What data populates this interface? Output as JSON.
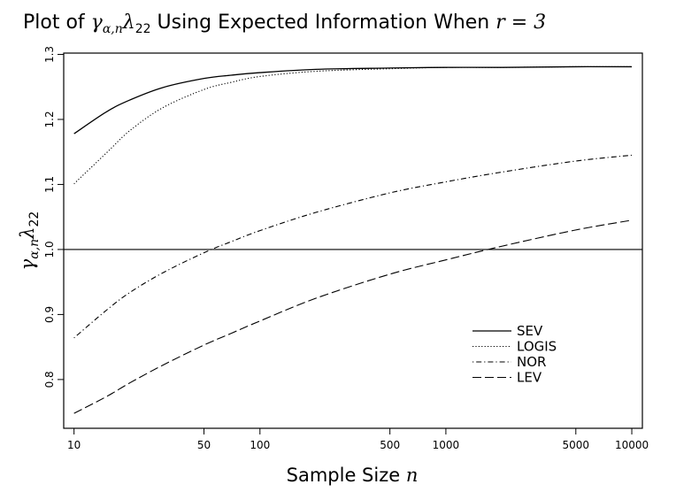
{
  "chart_data": {
    "type": "line",
    "title": {
      "prefix": "Plot of ",
      "math1_base": "γ",
      "math1_sub": "α,n",
      "math1_tail": "λ",
      "math1_tail_sub": "22",
      "middle": " Using Expected Information When ",
      "math2": "r = 3"
    },
    "xlabel": {
      "text": "Sample Size ",
      "var": "n"
    },
    "ylabel": {
      "base": "γ",
      "sub": "α,n",
      "tail": "λ",
      "tail_sub": "22"
    },
    "x_scale": "log",
    "xlim": [
      8.8,
      11400
    ],
    "ylim": [
      0.725,
      1.302
    ],
    "x_ticks": [
      {
        "value": 10,
        "label": "10"
      },
      {
        "value": 50,
        "label": "50"
      },
      {
        "value": 100,
        "label": "100"
      },
      {
        "value": 500,
        "label": "500"
      },
      {
        "value": 1000,
        "label": "1000"
      },
      {
        "value": 5000,
        "label": "5000"
      },
      {
        "value": 10000,
        "label": "10000"
      }
    ],
    "y_ticks": [
      {
        "value": 0.8,
        "label": "0.8"
      },
      {
        "value": 0.9,
        "label": "0.9"
      },
      {
        "value": 1.0,
        "label": "1.0"
      },
      {
        "value": 1.1,
        "label": "1.1"
      },
      {
        "value": 1.2,
        "label": "1.2"
      },
      {
        "value": 1.3,
        "label": "1.3"
      }
    ],
    "reference_line": 1.0,
    "legend_position": "bottom-right",
    "series": [
      {
        "name": "SEV",
        "dash": "solid",
        "x": [
          10,
          15,
          20,
          30,
          50,
          70,
          100,
          200,
          500,
          1000,
          2000,
          5000,
          10000
        ],
        "y": [
          1.178,
          1.212,
          1.23,
          1.249,
          1.263,
          1.268,
          1.272,
          1.277,
          1.279,
          1.28,
          1.28,
          1.281,
          1.281
        ]
      },
      {
        "name": "LOGIS",
        "dash": "dotted",
        "x": [
          10,
          15,
          20,
          30,
          50,
          70,
          100,
          200,
          500,
          1000,
          2000,
          5000,
          10000
        ],
        "y": [
          1.101,
          1.149,
          1.183,
          1.218,
          1.246,
          1.257,
          1.266,
          1.274,
          1.278,
          1.28,
          1.28,
          1.281,
          1.281
        ]
      },
      {
        "name": "NOR",
        "dash": "dotdash",
        "x": [
          10,
          15,
          20,
          30,
          50,
          70,
          100,
          200,
          500,
          1000,
          2000,
          5000,
          10000
        ],
        "y": [
          0.864,
          0.907,
          0.934,
          0.964,
          0.995,
          1.012,
          1.029,
          1.057,
          1.087,
          1.104,
          1.119,
          1.136,
          1.145
        ]
      },
      {
        "name": "LEV",
        "dash": "longdash",
        "x": [
          10,
          15,
          20,
          30,
          50,
          70,
          100,
          200,
          500,
          1000,
          2000,
          5000,
          10000
        ],
        "y": [
          0.748,
          0.774,
          0.795,
          0.822,
          0.853,
          0.871,
          0.89,
          0.925,
          0.962,
          0.984,
          1.005,
          1.03,
          1.045
        ]
      }
    ]
  }
}
